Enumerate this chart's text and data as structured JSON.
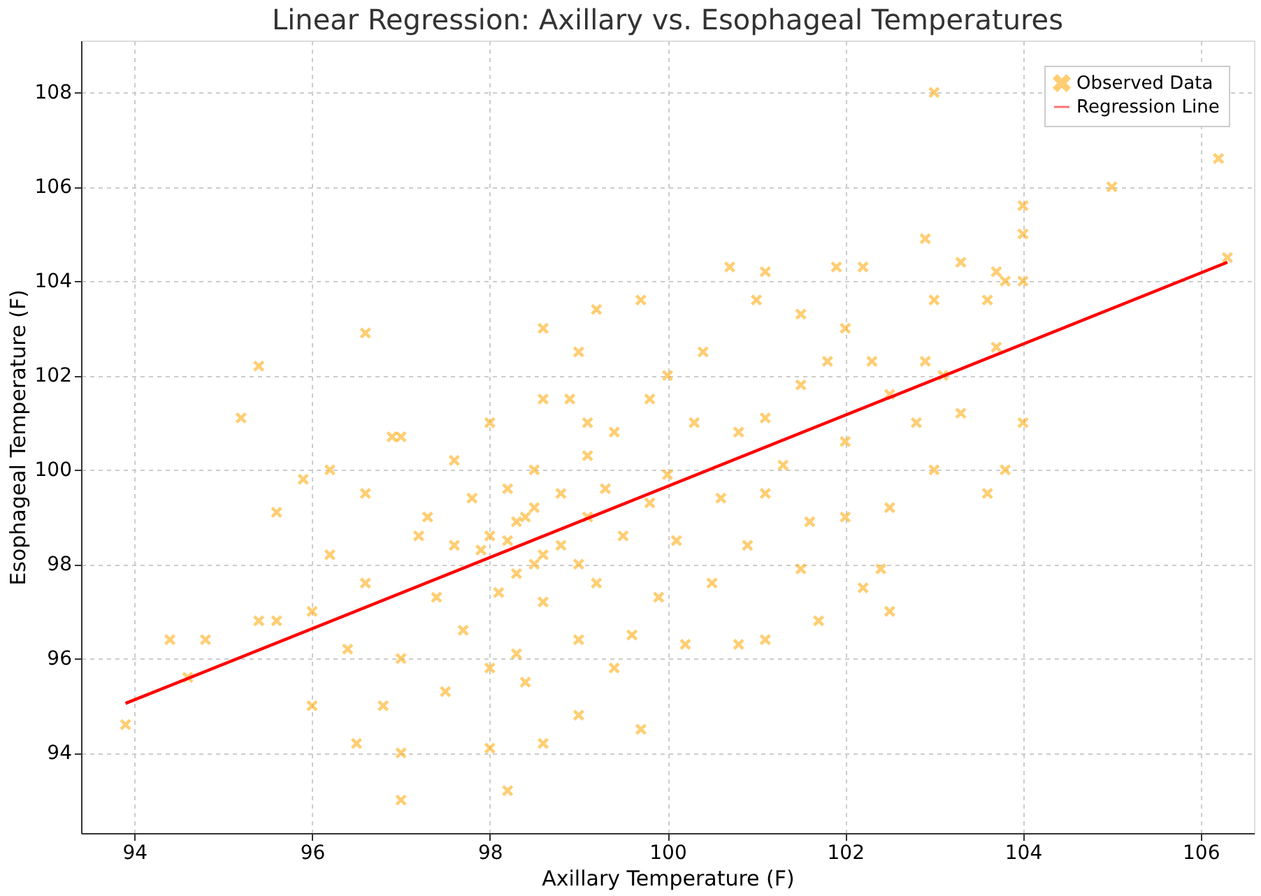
{
  "chart_data": {
    "type": "scatter",
    "title": "Linear Regression: Axillary vs. Esophageal Temperatures",
    "xlabel": "Axillary Temperature (F)",
    "ylabel": "Esophageal Temperature (F)",
    "xlim": [
      93.4,
      106.6
    ],
    "ylim": [
      92.3,
      109.1
    ],
    "xticks": [
      94,
      96,
      98,
      100,
      102,
      104,
      106
    ],
    "yticks": [
      94,
      96,
      98,
      100,
      102,
      104,
      106,
      108
    ],
    "grid": true,
    "legend": "top right",
    "series": [
      {
        "name": "Observed Data",
        "marker": "cross",
        "color": "#ffa500",
        "x": [
          93.9,
          94.4,
          94.6,
          94.8,
          95.2,
          95.4,
          95.4,
          95.6,
          95.6,
          95.9,
          96.0,
          96.0,
          96.2,
          96.2,
          96.4,
          96.5,
          96.6,
          96.6,
          96.6,
          96.8,
          96.9,
          97.0,
          97.0,
          97.0,
          97.0,
          97.2,
          97.3,
          97.4,
          97.5,
          97.6,
          97.6,
          97.7,
          97.8,
          98.0,
          98.0,
          98.0,
          98.0,
          98.1,
          98.2,
          98.2,
          98.3,
          98.3,
          98.4,
          98.5,
          98.5,
          98.6,
          98.6,
          98.6,
          98.6,
          98.8,
          98.9,
          99.0,
          99.0,
          99.0,
          99.1,
          99.1,
          99.2,
          99.2,
          99.4,
          99.4,
          99.5,
          99.6,
          99.7,
          99.7,
          99.8,
          99.8,
          99.9,
          100.0,
          100.0,
          100.1,
          100.2,
          100.3,
          100.4,
          100.5,
          100.6,
          100.7,
          100.8,
          100.8,
          100.9,
          101.0,
          101.1,
          101.1,
          101.1,
          101.1,
          101.3,
          101.5,
          101.5,
          101.5,
          101.6,
          101.7,
          101.8,
          101.9,
          102.0,
          102.0,
          102.0,
          102.2,
          102.2,
          102.3,
          102.4,
          102.5,
          102.5,
          102.5,
          102.8,
          102.9,
          102.9,
          103.0,
          103.0,
          103.0,
          103.1,
          103.3,
          103.3,
          103.6,
          103.6,
          103.7,
          103.7,
          103.8,
          103.8,
          104.0,
          104.0,
          104.0,
          104.0,
          105.0,
          106.2,
          106.3,
          98.2,
          98.4,
          98.6,
          98.8,
          99.0,
          98.3,
          99.3,
          97.9,
          98.5,
          99.1
        ],
        "values": [
          94.6,
          96.4,
          95.6,
          96.4,
          101.1,
          102.2,
          96.8,
          96.8,
          99.1,
          99.8,
          97.0,
          95.0,
          98.2,
          100.0,
          96.2,
          94.2,
          102.9,
          99.5,
          97.6,
          95.0,
          100.7,
          100.7,
          94.0,
          93.0,
          96.0,
          98.6,
          99.0,
          97.3,
          95.3,
          100.2,
          98.4,
          96.6,
          99.4,
          101.0,
          95.8,
          94.1,
          98.6,
          97.4,
          93.2,
          99.6,
          98.9,
          96.1,
          95.5,
          98.0,
          99.2,
          103.0,
          101.5,
          97.2,
          94.2,
          98.4,
          101.5,
          102.5,
          96.4,
          94.8,
          100.3,
          99.0,
          97.6,
          103.4,
          100.8,
          95.8,
          98.6,
          96.5,
          94.5,
          103.6,
          101.5,
          99.3,
          97.3,
          102.0,
          99.9,
          98.5,
          96.3,
          101.0,
          102.5,
          97.6,
          99.4,
          104.3,
          100.8,
          96.3,
          98.4,
          103.6,
          104.2,
          101.1,
          99.5,
          96.4,
          100.1,
          103.3,
          97.9,
          101.8,
          98.9,
          96.8,
          102.3,
          104.3,
          103.0,
          100.6,
          99.0,
          104.3,
          97.5,
          102.3,
          97.9,
          101.6,
          99.2,
          97.0,
          101.0,
          104.9,
          102.3,
          108.0,
          103.6,
          100.0,
          102.0,
          104.4,
          101.2,
          103.6,
          99.5,
          104.2,
          102.6,
          100.0,
          104.0,
          105.6,
          105.0,
          104.0,
          101.0,
          106.0,
          106.6,
          104.5,
          98.5,
          99.0,
          98.2,
          99.5,
          98.0,
          97.8,
          99.6,
          98.3,
          100.0,
          101.0
        ]
      },
      {
        "name": "Regression Line",
        "type": "line",
        "line_style": "solid",
        "color": "#ff0000",
        "x": [
          93.9,
          106.3
        ],
        "values": [
          95.05,
          104.4
        ]
      }
    ]
  }
}
